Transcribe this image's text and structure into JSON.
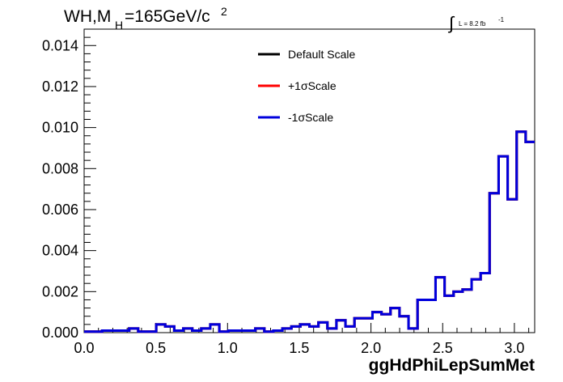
{
  "chart_data": {
    "type": "line",
    "title_main": "WH,M",
    "title_sub": "H",
    "title_rest": "=165GeV/c",
    "title_sup": "2",
    "lumi_int": "∫",
    "lumi_text": "L = 8.2 fb",
    "lumi_sup": "-1",
    "xlabel": "ggHdPhiLepSumMet",
    "xlim": [
      0.0,
      3.1416
    ],
    "ylim": [
      0.0,
      0.0148
    ],
    "x_ticks": [
      "0.0",
      "0.5",
      "1.0",
      "1.5",
      "2.0",
      "2.5",
      "3.0"
    ],
    "x_tick_values": [
      0.0,
      0.5,
      1.0,
      1.5,
      2.0,
      2.5,
      3.0
    ],
    "y_ticks": [
      "0.000",
      "0.002",
      "0.004",
      "0.006",
      "0.008",
      "0.010",
      "0.012",
      "0.014"
    ],
    "y_tick_values": [
      0.0,
      0.002,
      0.004,
      0.006,
      0.008,
      0.01,
      0.012,
      0.014
    ],
    "bin_edges_count": 50,
    "series": [
      {
        "name": "Default Scale",
        "color": "#000000",
        "values": [
          5e-05,
          5e-05,
          0.0001,
          0.0001,
          0.0001,
          0.0002,
          5e-05,
          5e-05,
          0.0004,
          0.0003,
          0.0001,
          0.0002,
          0.0001,
          0.0002,
          0.0004,
          5e-05,
          0.0001,
          0.0001,
          0.0001,
          0.0002,
          5e-05,
          0.0001,
          0.0002,
          0.0003,
          0.0004,
          0.0003,
          0.0005,
          0.0002,
          0.0006,
          0.0003,
          0.0007,
          0.0007,
          0.001,
          0.0009,
          0.0012,
          0.0008,
          0.0002,
          0.0016,
          0.0016,
          0.0027,
          0.0018,
          0.002,
          0.0021,
          0.0026,
          0.0029,
          0.0068,
          0.0086,
          0.0065,
          0.0098,
          0.0093
        ]
      },
      {
        "name": "+1σScale",
        "color": "#ff0000",
        "values": [
          5e-05,
          5e-05,
          0.0001,
          0.0001,
          0.0001,
          0.0002,
          5e-05,
          5e-05,
          0.0004,
          0.0003,
          0.0001,
          0.0002,
          0.0001,
          0.0002,
          0.0004,
          5e-05,
          0.0001,
          0.0001,
          0.0001,
          0.0002,
          5e-05,
          0.0001,
          0.0002,
          0.0003,
          0.0004,
          0.0003,
          0.0005,
          0.0002,
          0.0006,
          0.0003,
          0.0007,
          0.0007,
          0.001,
          0.0009,
          0.0012,
          0.0008,
          0.0002,
          0.0016,
          0.0016,
          0.0027,
          0.0018,
          0.002,
          0.0021,
          0.0026,
          0.0029,
          0.0068,
          0.0086,
          0.0065,
          0.0098,
          0.0093
        ]
      },
      {
        "name": "-1σScale",
        "color": "#0000dd",
        "values": [
          5e-05,
          5e-05,
          0.0001,
          0.0001,
          0.0001,
          0.0002,
          5e-05,
          5e-05,
          0.0004,
          0.0003,
          0.0001,
          0.0002,
          0.0001,
          0.0002,
          0.0004,
          5e-05,
          0.0001,
          0.0001,
          0.0001,
          0.0002,
          5e-05,
          0.0001,
          0.0002,
          0.0003,
          0.0004,
          0.0003,
          0.0005,
          0.0002,
          0.0006,
          0.0003,
          0.0007,
          0.0007,
          0.001,
          0.0009,
          0.0012,
          0.0008,
          0.0002,
          0.0016,
          0.0016,
          0.0027,
          0.0018,
          0.002,
          0.0021,
          0.0026,
          0.0029,
          0.0068,
          0.0086,
          0.0065,
          0.0098,
          0.0093
        ]
      }
    ],
    "legend_position": "top-center",
    "grid": false
  }
}
